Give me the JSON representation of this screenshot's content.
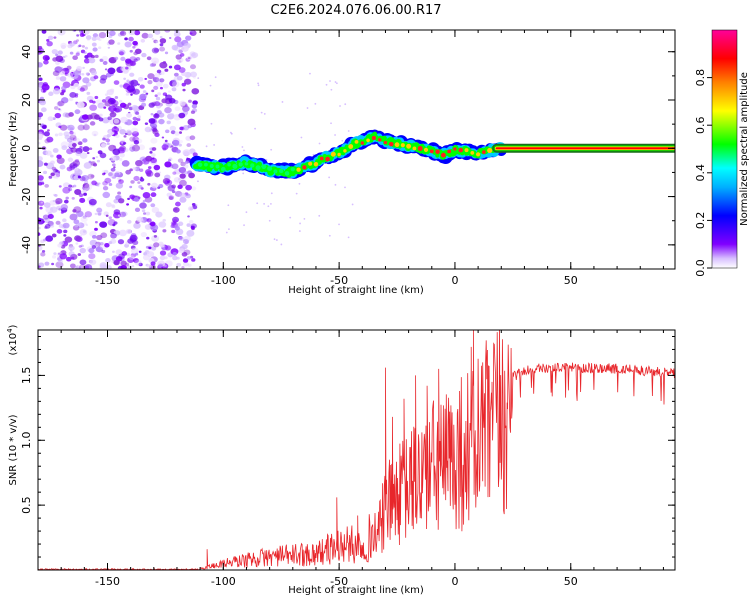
{
  "title": "C2E6.2024.076.06.00.R17",
  "chart_data": [
    {
      "type": "heatmap",
      "name": "spectrogram",
      "xlabel": "Height of straight line (km)",
      "ylabel": "Frequency (Hz)",
      "xlim": [
        -180,
        95
      ],
      "ylim": [
        -50,
        49
      ],
      "xticks": [
        -150,
        -100,
        -50,
        0,
        50
      ],
      "xtick_labels": [
        "-150",
        "-100",
        "-50",
        "0",
        "50"
      ],
      "yticks": [
        -40,
        -20,
        0,
        20,
        40
      ],
      "ytick_labels": [
        "-40",
        "-20",
        "0",
        "20",
        "40"
      ],
      "colorbar": {
        "label": "Normalized spectral amplitude",
        "range": [
          0,
          1
        ],
        "ticks": [
          0.0,
          0.2,
          0.4,
          0.6,
          0.8
        ],
        "tick_labels": [
          "0.0",
          "0.2",
          "0.4",
          "0.6",
          "0.8"
        ],
        "colors": [
          "#ffffff",
          "#c8a0ff",
          "#7f00ff",
          "#0000ff",
          "#00ffff",
          "#00ff00",
          "#ffff00",
          "#ff8000",
          "#ff0000",
          "#ff00aa"
        ]
      },
      "noise_region_x": [
        -180,
        -112
      ],
      "signal_track": {
        "x": [
          -112,
          -100,
          -90,
          -80,
          -72,
          -65,
          -58,
          -50,
          -45,
          -40,
          -35,
          -30,
          -25,
          -20,
          -15,
          -10,
          -5,
          0,
          5,
          10,
          15,
          20,
          95
        ],
        "y": [
          -7,
          -8,
          -6,
          -9,
          -10,
          -8,
          -5,
          -2,
          1,
          3,
          5,
          3,
          2,
          1,
          0,
          -1,
          -3,
          -1,
          -1,
          -2,
          -1,
          0,
          0
        ]
      },
      "steady_line": {
        "x_start": 18,
        "x_end": 95,
        "y": 0
      }
    },
    {
      "type": "line",
      "name": "snr",
      "xlabel": "Height of straight line (km)",
      "ylabel": "SNR (10 * v/v)",
      "exponent_label": "(x10",
      "exponent_power": "4",
      "exponent_close": ")",
      "xlim": [
        -180,
        95
      ],
      "ylim": [
        0,
        1.85
      ],
      "xticks": [
        -150,
        -100,
        -50,
        0,
        50
      ],
      "xtick_labels": [
        "-150",
        "-100",
        "-50",
        "0",
        "50"
      ],
      "yticks": [
        0.5,
        1.0,
        1.5
      ],
      "ytick_labels": [
        "0.5",
        "1.0",
        "1.5"
      ],
      "color": "#e8262b",
      "envelope": {
        "x": [
          -180,
          -110,
          -100,
          -80,
          -60,
          -50,
          -40,
          -33,
          -30,
          -25,
          -20,
          -15,
          -10,
          -5,
          0,
          5,
          10,
          15,
          20,
          25,
          30,
          40,
          60,
          80,
          95
        ],
        "y": [
          0.01,
          0.01,
          0.06,
          0.12,
          0.15,
          0.22,
          0.24,
          0.36,
          0.6,
          0.7,
          0.8,
          0.92,
          0.98,
          1.0,
          1.08,
          1.18,
          1.25,
          1.34,
          1.45,
          1.53,
          1.58,
          1.6,
          1.6,
          1.58,
          1.56
        ]
      },
      "spikes": [
        {
          "x": -107,
          "y": 0.16
        },
        {
          "x": -51,
          "y": 0.56
        },
        {
          "x": -42,
          "y": 0.42
        },
        {
          "x": -30,
          "y": 1.56
        },
        {
          "x": -27,
          "y": 1.18
        },
        {
          "x": -22,
          "y": 1.32
        },
        {
          "x": -17,
          "y": 1.5
        },
        {
          "x": -12,
          "y": 1.42
        },
        {
          "x": -7,
          "y": 1.55
        },
        {
          "x": -3,
          "y": 1.12
        },
        {
          "x": 2,
          "y": 1.38
        },
        {
          "x": 7,
          "y": 1.72
        },
        {
          "x": 8,
          "y": 1.85
        },
        {
          "x": 12,
          "y": 1.6
        },
        {
          "x": 16,
          "y": 1.45
        }
      ]
    }
  ]
}
